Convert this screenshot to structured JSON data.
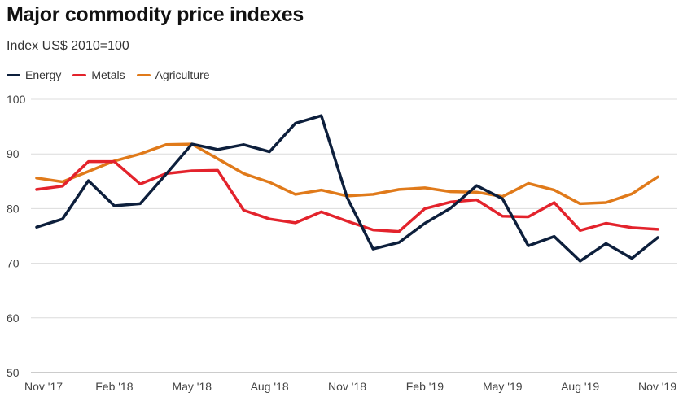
{
  "title": "Major commodity price indexes",
  "subtitle": "Index US$ 2010=100",
  "legend": [
    {
      "name": "Energy",
      "color": "#0d1f3c"
    },
    {
      "name": "Metals",
      "color": "#e3232c"
    },
    {
      "name": "Agriculture",
      "color": "#e07a1a"
    }
  ],
  "chart_data": {
    "type": "line",
    "title": "Major commodity price indexes",
    "subtitle": "Index US$ 2010=100",
    "xlabel": "",
    "ylabel": "",
    "ylim": [
      50,
      100
    ],
    "yticks": [
      50,
      60,
      70,
      80,
      90,
      100
    ],
    "grid": true,
    "legend_position": "top-left",
    "x": [
      "Nov '17",
      "Dec '17",
      "Jan '18",
      "Feb '18",
      "Mar '18",
      "Apr '18",
      "May '18",
      "Jun '18",
      "Jul '18",
      "Aug '18",
      "Sep '18",
      "Oct '18",
      "Nov '18",
      "Dec '18",
      "Jan '19",
      "Feb '19",
      "Mar '19",
      "Apr '19",
      "May '19",
      "Jun '19",
      "Jul '19",
      "Aug '19",
      "Sep '19",
      "Oct '19",
      "Nov '19"
    ],
    "xtick_labels": [
      "Nov '17",
      "Feb '18",
      "May '18",
      "Aug '18",
      "Nov '18",
      "Feb '19",
      "May '19",
      "Aug '19",
      "Nov '19"
    ],
    "xtick_indices": [
      0,
      3,
      6,
      9,
      12,
      15,
      18,
      21,
      24
    ],
    "series": [
      {
        "name": "Energy",
        "color": "#0d1f3c",
        "values": [
          76.6,
          78.1,
          85.1,
          80.5,
          80.9,
          86.3,
          91.8,
          90.8,
          91.7,
          90.4,
          95.6,
          97.0,
          82.0,
          72.6,
          73.8,
          77.3,
          80.1,
          84.2,
          81.8,
          73.2,
          74.9,
          70.4,
          73.6,
          70.9,
          74.7
        ]
      },
      {
        "name": "Metals",
        "color": "#e3232c",
        "values": [
          83.5,
          84.1,
          88.6,
          88.6,
          84.5,
          86.4,
          86.9,
          87.0,
          79.7,
          78.1,
          77.4,
          79.4,
          77.7,
          76.1,
          75.8,
          80.0,
          81.2,
          81.6,
          78.6,
          78.5,
          81.1,
          76.0,
          77.3,
          76.5,
          76.2
        ]
      },
      {
        "name": "Agriculture",
        "color": "#e07a1a",
        "values": [
          85.6,
          84.9,
          86.8,
          88.7,
          90.0,
          91.7,
          91.8,
          89.1,
          86.4,
          84.8,
          82.6,
          83.4,
          82.3,
          82.6,
          83.5,
          83.8,
          83.1,
          83.0,
          82.2,
          84.6,
          83.4,
          80.9,
          81.1,
          82.7,
          85.8
        ]
      }
    ]
  }
}
